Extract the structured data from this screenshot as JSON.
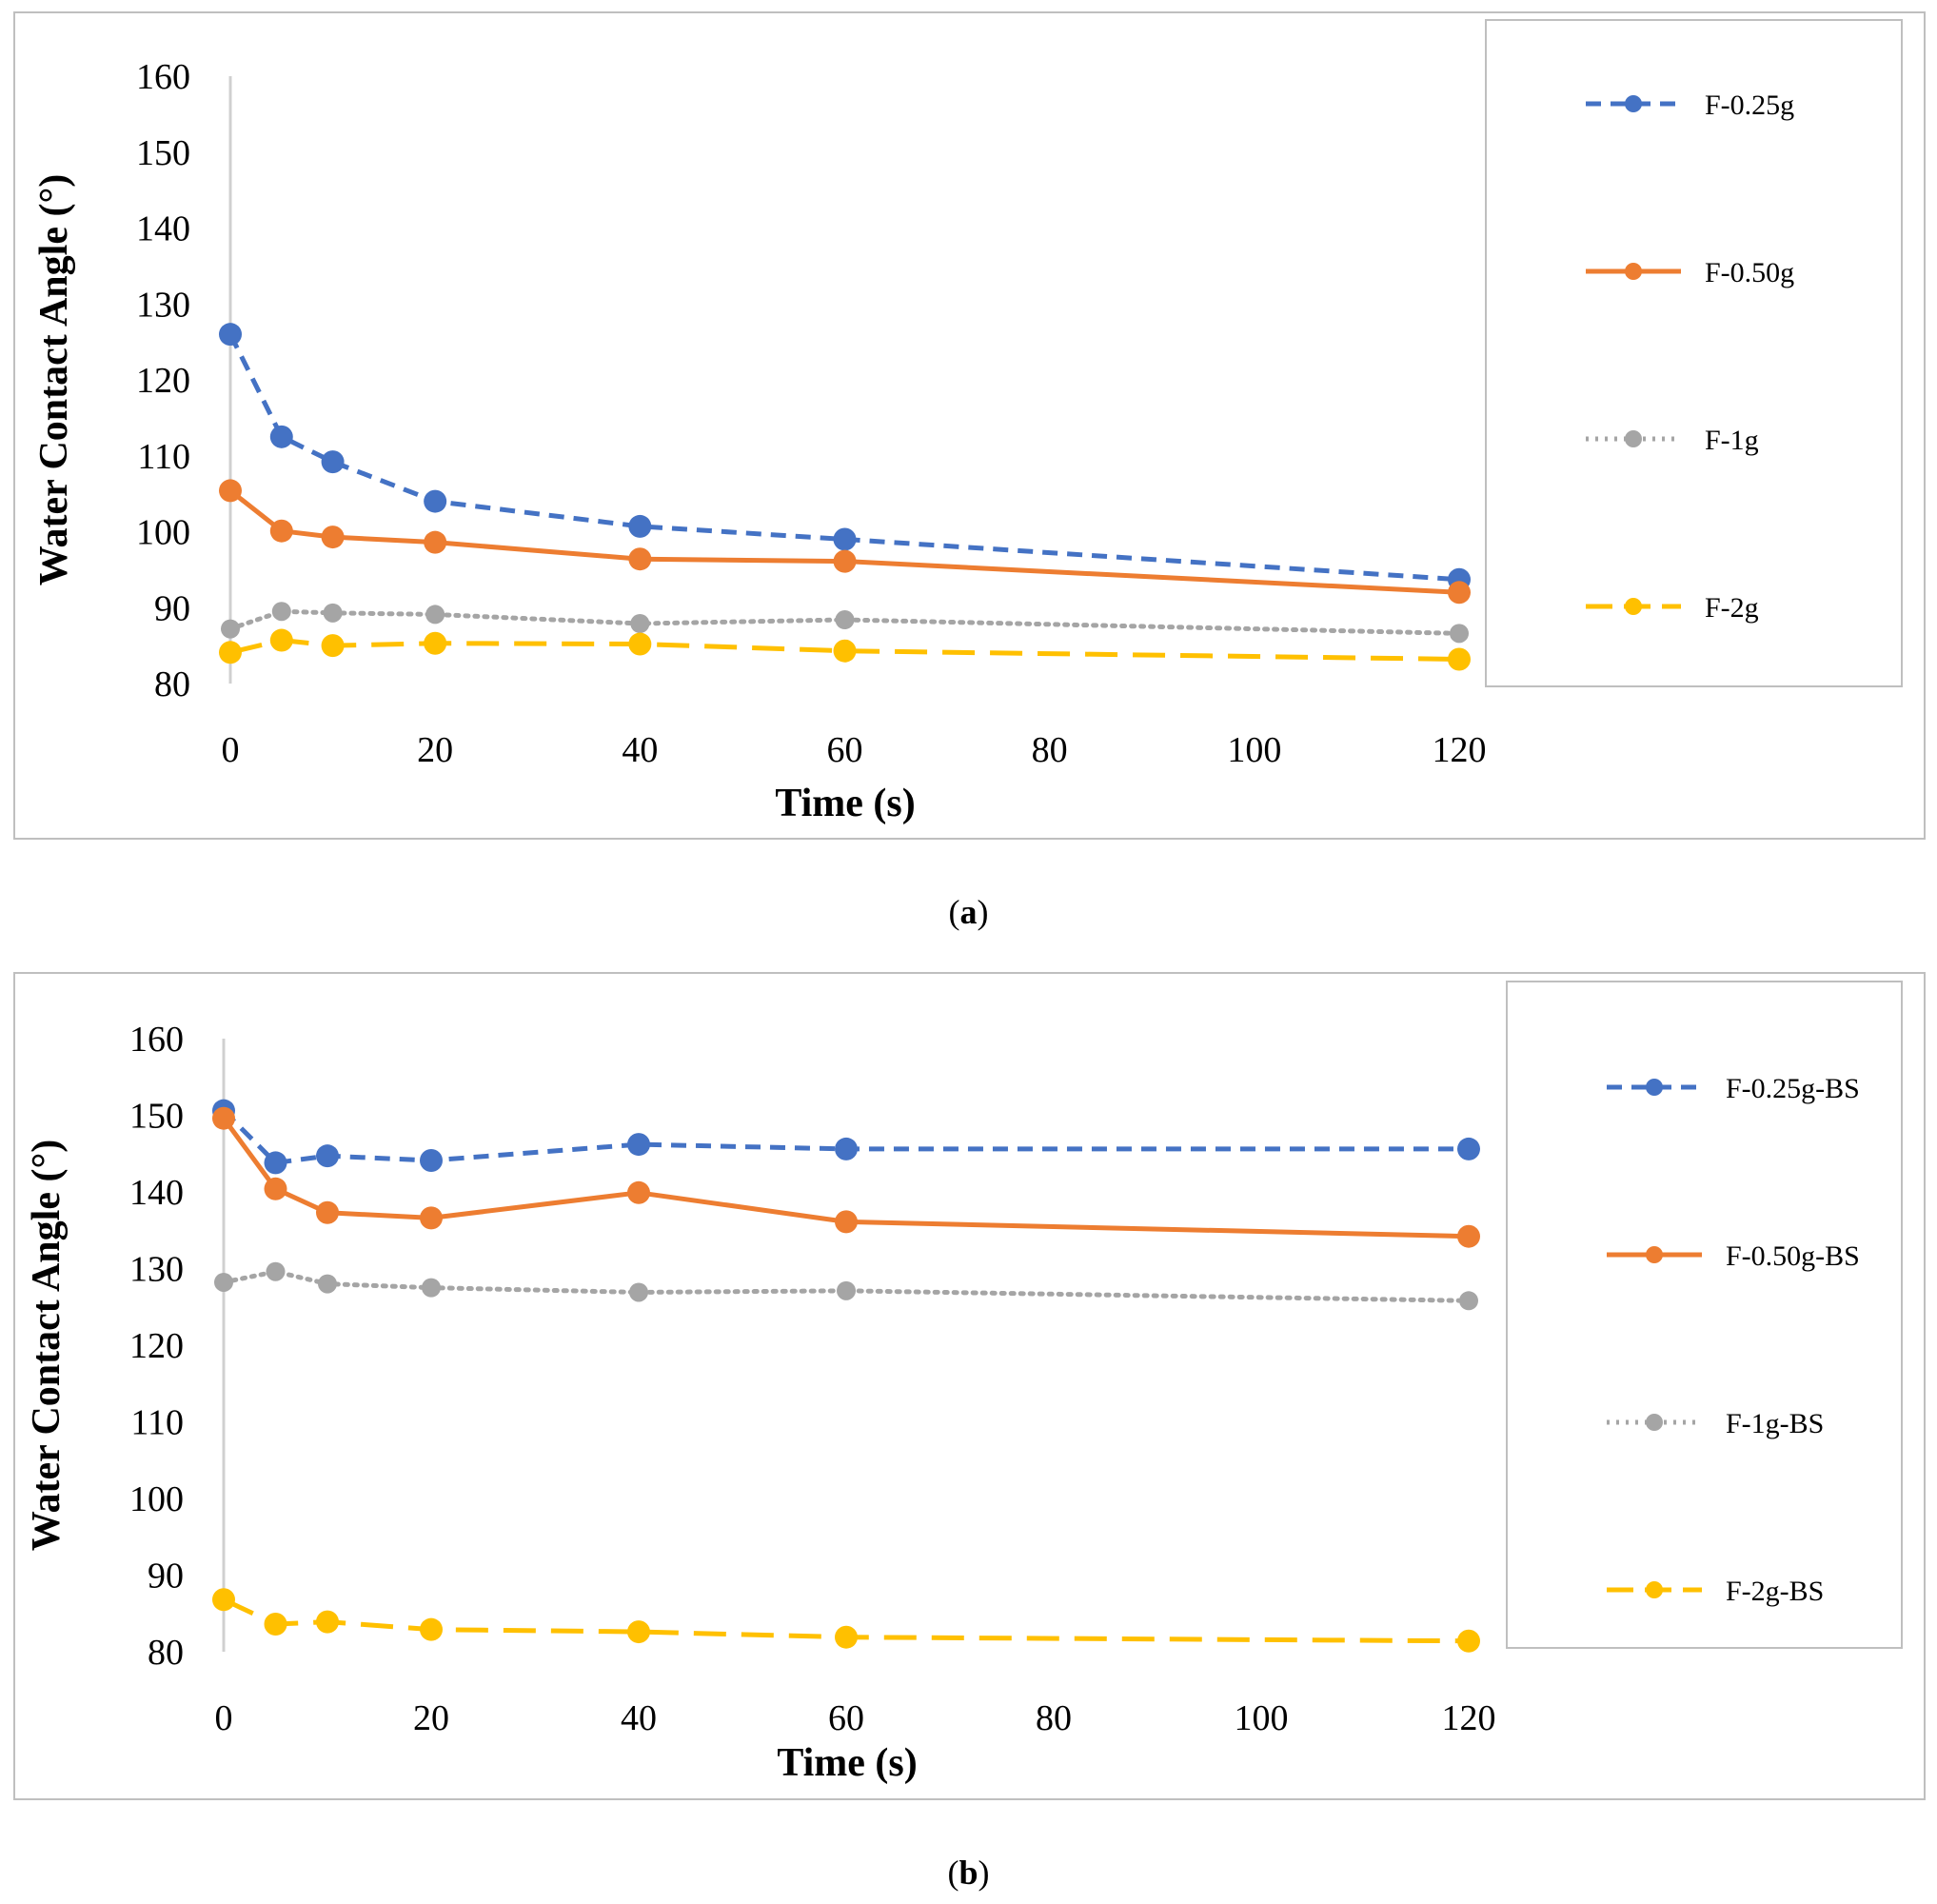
{
  "chart_data": [
    {
      "type": "line",
      "panel_label": "a",
      "caption_open": "(",
      "caption_close": ")",
      "title": "",
      "xlabel": "Time (s)",
      "ylabel": "Water Contact Angle (°)",
      "xlim": [
        0,
        120
      ],
      "ylim": [
        80,
        160
      ],
      "xticks": [
        0,
        20,
        40,
        60,
        80,
        100,
        120
      ],
      "yticks": [
        80,
        90,
        100,
        110,
        120,
        130,
        140,
        150,
        160
      ],
      "grid": false,
      "legend_position": "right",
      "x": [
        0,
        5,
        10,
        20,
        40,
        60,
        120
      ],
      "series": [
        {
          "name": "F-0.25g",
          "color": "#4472c4",
          "style": "dashed",
          "values": [
            126,
            112.5,
            109.2,
            104,
            100.7,
            99,
            93.7
          ]
        },
        {
          "name": "F-0.50g",
          "color": "#ed7d31",
          "style": "solid",
          "values": [
            105.4,
            100.1,
            99.3,
            98.6,
            96.4,
            96.1,
            92
          ]
        },
        {
          "name": "F-1g",
          "color": "#a5a5a5",
          "style": "dotted",
          "values": [
            87.2,
            89.5,
            89.3,
            89.1,
            87.9,
            88.4,
            86.6
          ]
        },
        {
          "name": "F-2g",
          "color": "#ffc000",
          "style": "longdash",
          "values": [
            84.1,
            85.7,
            85,
            85.3,
            85.2,
            84.3,
            83.2
          ]
        }
      ]
    },
    {
      "type": "line",
      "panel_label": "b",
      "caption_open": "(",
      "caption_close": ")",
      "title": "",
      "xlabel": "Time (s)",
      "ylabel": "Water Contact Angle (°)",
      "xlim": [
        0,
        120
      ],
      "ylim": [
        80,
        160
      ],
      "xticks": [
        0,
        20,
        40,
        60,
        80,
        100,
        120
      ],
      "yticks": [
        80,
        90,
        100,
        110,
        120,
        130,
        140,
        150,
        160
      ],
      "grid": false,
      "legend_position": "right",
      "x": [
        0,
        5,
        10,
        20,
        40,
        60,
        120
      ],
      "series": [
        {
          "name": "F-0.25g-BS",
          "color": "#4472c4",
          "style": "dashed",
          "values": [
            150.6,
            143.8,
            144.7,
            144.1,
            146.2,
            145.6,
            145.6
          ]
        },
        {
          "name": "F-0.50g-BS",
          "color": "#ed7d31",
          "style": "solid",
          "values": [
            149.6,
            140.4,
            137.3,
            136.6,
            139.9,
            136.1,
            134.2
          ]
        },
        {
          "name": "F-1g-BS",
          "color": "#a5a5a5",
          "style": "dotted",
          "values": [
            128.2,
            129.6,
            128,
            127.5,
            126.9,
            127.1,
            125.8
          ]
        },
        {
          "name": "F-2g-BS",
          "color": "#ffc000",
          "style": "longdash",
          "values": [
            86.8,
            83.6,
            83.9,
            82.9,
            82.6,
            81.9,
            81.4
          ]
        }
      ]
    }
  ]
}
